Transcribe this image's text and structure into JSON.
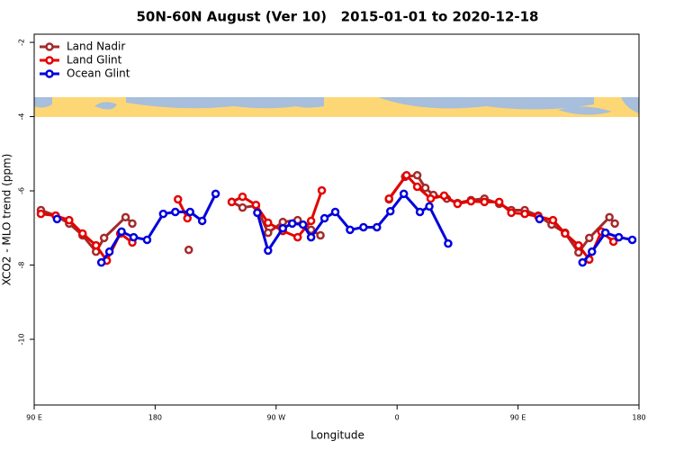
{
  "chart_data": {
    "type": "line",
    "title": "50N-60N August (Ver 10)   2015-01-01 to 2020-12-18",
    "xlabel": "Longitude",
    "ylabel": "XCO2 - MLO trend (ppm)",
    "xlim": [
      90,
      540
    ],
    "ylim": [
      -11.77,
      -1.78
    ],
    "xticks": [
      {
        "value": 90,
        "label": "90 E"
      },
      180,
      {
        "value": 270,
        "label": "90 W"
      },
      {
        "value": 360,
        "label": "0"
      },
      {
        "value": 450,
        "label": "90 E"
      },
      {
        "value": 540,
        "label": "180"
      }
    ],
    "yticks": [
      -2,
      -4,
      -6,
      -8,
      -10
    ],
    "legend": "top-left",
    "series": [
      {
        "name": "Land Nadir",
        "color": "#a52a2a",
        "x": [
          95,
          106,
          116,
          126,
          136,
          142,
          158,
          163,
          null,
          205,
          null,
          237,
          245,
          255,
          264,
          275,
          286,
          296,
          303,
          null,
          354,
          366,
          375,
          381,
          387,
          397,
          405,
          415,
          425,
          436,
          445,
          455,
          465,
          475,
          485,
          495,
          503,
          518,
          522
        ],
        "values": [
          -6.52,
          -6.67,
          -6.88,
          -7.2,
          -7.64,
          -7.27,
          -6.71,
          -6.88,
          null,
          -7.59,
          null,
          -6.3,
          -6.45,
          -6.4,
          -7.13,
          -6.84,
          -6.79,
          -7.05,
          -7.2,
          null,
          -6.23,
          -5.62,
          -5.58,
          -5.92,
          -6.11,
          -6.21,
          -6.33,
          -6.25,
          -6.21,
          -6.35,
          -6.52,
          -6.52,
          -6.67,
          -6.91,
          -7.13,
          -7.66,
          -7.27,
          -6.71,
          -6.88
        ]
      },
      {
        "name": "Land Glint",
        "color": "#e60000",
        "x": [
          95,
          106,
          116,
          126,
          136,
          144,
          154,
          163,
          null,
          197,
          204,
          null,
          237,
          245,
          255,
          264,
          275,
          286,
          296,
          304,
          null,
          354,
          367,
          375,
          385,
          395,
          405,
          415,
          425,
          436,
          445,
          455,
          465,
          476,
          485,
          495,
          503,
          512,
          521
        ],
        "values": [
          -6.62,
          -6.67,
          -6.79,
          -7.15,
          -7.47,
          -7.88,
          -7.15,
          -7.39,
          null,
          -6.23,
          -6.74,
          null,
          -6.3,
          -6.16,
          -6.38,
          -6.86,
          -7.08,
          -7.25,
          -6.81,
          -5.99,
          null,
          -6.21,
          -5.58,
          -5.89,
          -6.21,
          -6.13,
          -6.35,
          -6.28,
          -6.3,
          -6.3,
          -6.59,
          -6.62,
          -6.69,
          -6.79,
          -7.15,
          -7.47,
          -7.85,
          -7.1,
          -7.37
        ]
      },
      {
        "name": "Ocean Glint",
        "color": "#0000dd",
        "x": [
          107,
          null,
          140,
          146,
          155,
          164,
          174,
          186,
          195,
          206,
          215,
          225,
          null,
          256,
          264,
          275,
          282,
          290,
          296,
          306,
          314,
          325,
          335,
          345,
          355,
          365,
          377,
          384,
          398,
          null,
          466,
          null,
          498,
          505,
          515,
          525,
          535
        ],
        "values": [
          -6.76,
          null,
          -7.93,
          -7.64,
          -7.1,
          -7.25,
          -7.32,
          -6.62,
          -6.57,
          -6.57,
          -6.81,
          -6.08,
          null,
          -6.59,
          -7.61,
          -7.01,
          -6.88,
          -6.91,
          -7.25,
          -6.74,
          -6.57,
          -7.05,
          -6.98,
          -6.98,
          -6.55,
          -6.08,
          -6.57,
          -6.42,
          -7.42,
          null,
          -6.76,
          null,
          -7.93,
          -7.64,
          -7.13,
          -7.25,
          -7.32
        ]
      }
    ]
  }
}
